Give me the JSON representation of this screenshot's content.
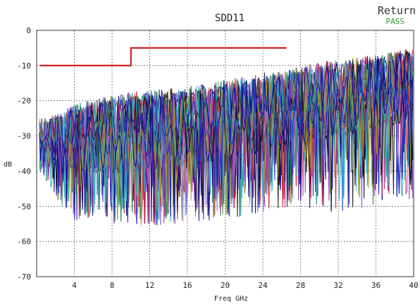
{
  "chart_data": {
    "type": "line",
    "title": "SDD11",
    "corner_label": "Return",
    "status": "PASS",
    "status_color": "#2a9a2a",
    "xlabel": "Freq GHz",
    "ylabel": "dB",
    "xlim": [
      0,
      40
    ],
    "ylim": [
      -70,
      0
    ],
    "x_ticks": [
      4,
      8,
      12,
      16,
      20,
      24,
      28,
      32,
      36,
      40
    ],
    "y_ticks": [
      0,
      -10,
      -20,
      -30,
      -40,
      -50,
      -60,
      -70
    ],
    "grid": true,
    "limit_line": {
      "color": "#cc2222",
      "x": [
        0.3,
        10,
        10,
        26.5
      ],
      "y": [
        -10,
        -10,
        -5,
        -5
      ]
    },
    "series_colors": [
      "#0b0b7a",
      "#1c1cc0",
      "#b7a779",
      "#cc2233",
      "#2e8b57",
      "#8a6fe0",
      "#3ab0d8",
      "#c0307a",
      "#7a3fb0",
      "#101010",
      "#2aa0a0",
      "#9a9a30"
    ],
    "envelope": {
      "x": [
        0.3,
        2,
        4,
        8,
        12,
        16,
        20,
        24,
        28,
        32,
        36,
        40
      ],
      "upper_db": [
        -25,
        -24,
        -21,
        -18,
        -17,
        -16,
        -14,
        -12,
        -10,
        -8,
        -7,
        -5
      ],
      "mean_db": [
        -30,
        -31,
        -31,
        -30,
        -29,
        -28,
        -26,
        -24,
        -22,
        -20,
        -18,
        -16
      ],
      "lower_db": [
        -40,
        -48,
        -54,
        -55,
        -56,
        -55,
        -54,
        -52,
        -50,
        -52,
        -50,
        -48
      ]
    }
  }
}
